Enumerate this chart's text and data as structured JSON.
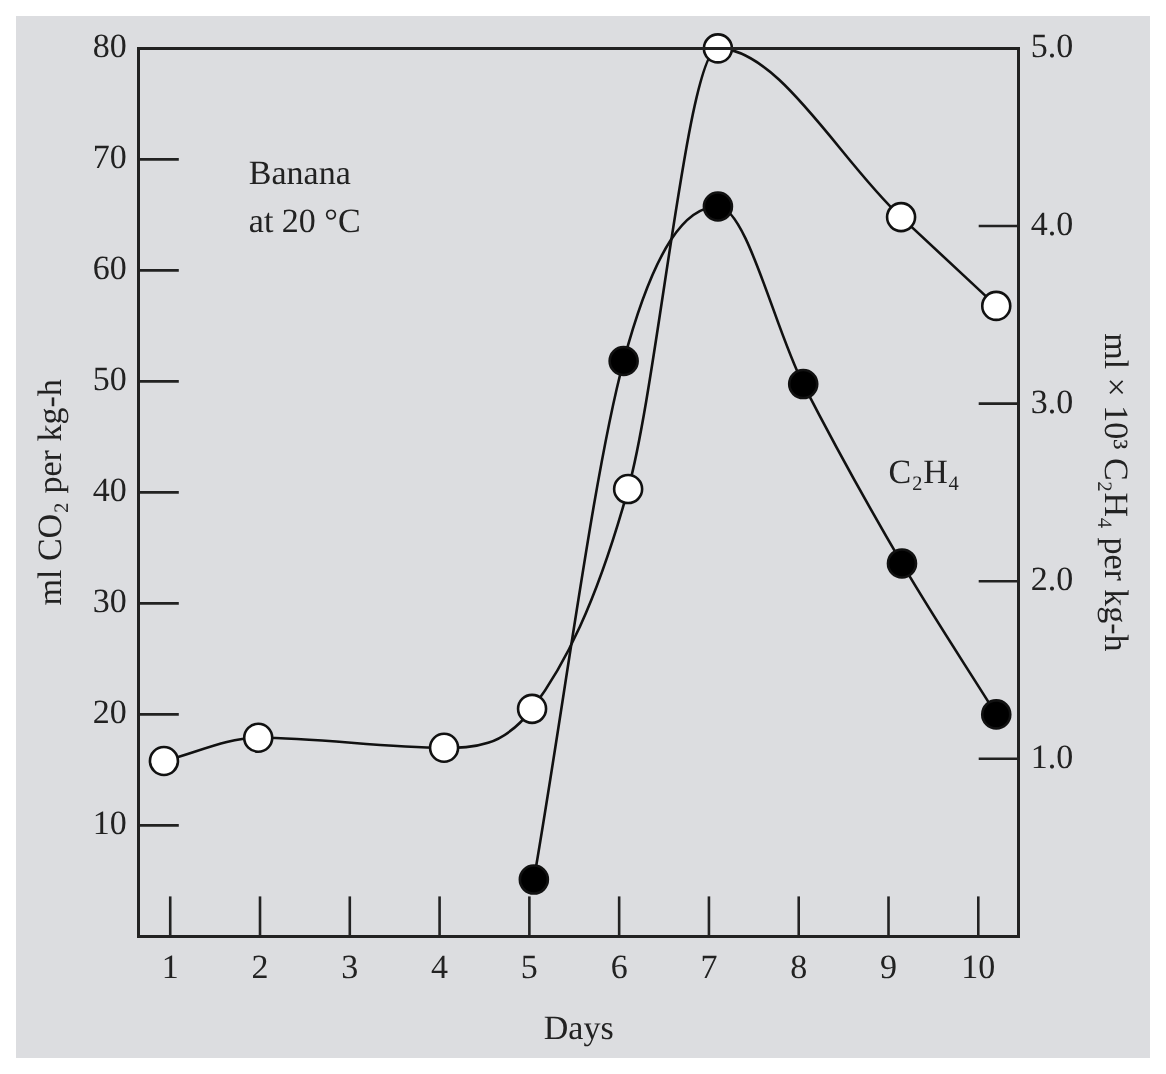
{
  "chart_data": {
    "type": "line",
    "xlabel": "Days",
    "ylabel": "ml CO₂ per kg-h",
    "y2label": "ml × 10³ C₂H₄ per kg-h",
    "annotations": [
      "Banana\nat 20 °C"
    ],
    "xlim": [
      0.65,
      10.45
    ],
    "xticks": [
      1,
      2,
      3,
      4,
      5,
      6,
      7,
      8,
      9,
      10
    ],
    "ylim": [
      0,
      80
    ],
    "yticks": [
      10,
      20,
      30,
      40,
      50,
      60,
      70,
      80
    ],
    "y2lim": [
      0,
      5
    ],
    "y2ticks": [
      {
        "value": 1,
        "label": "1.0"
      },
      {
        "value": 2,
        "label": "2.0"
      },
      {
        "value": 3,
        "label": "3.0"
      },
      {
        "value": 4,
        "label": "4.0"
      },
      {
        "value": 5,
        "label": "5.0"
      }
    ],
    "marker": "circle",
    "line_style": "solid",
    "grid": false,
    "legend": false,
    "series": [
      {
        "color": "#ffffff",
        "x": [
          0.93,
          1.98,
          4.05,
          5.03,
          6.1,
          7.1,
          9.14,
          10.2
        ],
        "values": [
          15.8,
          17.9,
          17.0,
          20.5,
          40.3,
          80,
          64.8,
          56.8
        ]
      },
      {
        "name": "C₂H₄",
        "axis": "y2",
        "color": "#000000",
        "x": [
          5.05,
          6.05,
          7.1,
          8.05,
          9.15,
          10.2
        ],
        "values": [
          0.32,
          3.24,
          4.11,
          3.11,
          2.1,
          1.25
        ]
      }
    ]
  }
}
